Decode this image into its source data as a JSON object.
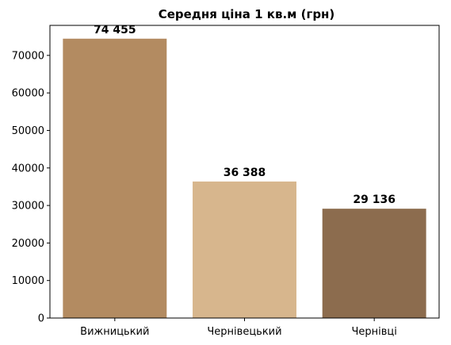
{
  "chart_data": {
    "type": "bar",
    "title": "Середня ціна 1 кв.м (грн)",
    "categories": [
      "Вижницький",
      "Чернівецький",
      "Чернівці"
    ],
    "values": [
      74455,
      36388,
      29136
    ],
    "value_labels": [
      "74 455",
      "36 388",
      "29 136"
    ],
    "colors": [
      "#b38b61",
      "#d7b68d",
      "#8c6c4e"
    ],
    "ylim": [
      0,
      78000
    ],
    "yticks": [
      0,
      10000,
      20000,
      30000,
      40000,
      50000,
      60000,
      70000
    ],
    "ytick_labels": [
      "0",
      "10000",
      "20000",
      "30000",
      "40000",
      "50000",
      "60000",
      "70000"
    ],
    "xlabel": "",
    "ylabel": "",
    "grid": false
  }
}
